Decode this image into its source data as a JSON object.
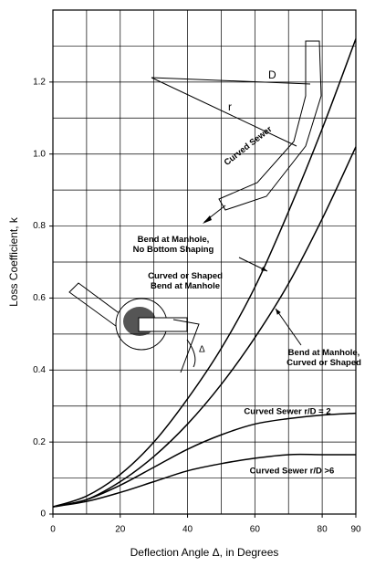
{
  "chart_data": {
    "type": "line",
    "x_label": "Deflection Angle Δ, in Degrees",
    "y_label": "Loss Coefficient, k",
    "xlim": [
      0,
      90
    ],
    "ylim": [
      0,
      1.4
    ],
    "xticks": [
      0,
      20,
      40,
      60,
      80,
      90
    ],
    "x_gridlines": [
      0,
      10,
      20,
      30,
      40,
      50,
      60,
      70,
      80,
      90
    ],
    "yticks": [
      0,
      0.2,
      0.4,
      0.6,
      0.8,
      {
        "value": 1.0,
        "label": "1.0"
      },
      1.2
    ],
    "y_gridlines": [
      0,
      0.1,
      0.2,
      0.3,
      0.4,
      0.5,
      0.6,
      0.7,
      0.8,
      0.9,
      1.0,
      1.1,
      1.2,
      1.3,
      1.4
    ],
    "grid": true,
    "x": [
      0,
      10,
      20,
      30,
      40,
      50,
      60,
      70,
      80,
      90
    ],
    "series": [
      {
        "name": "Bend at Manhole,\nNo Bottom Shaping",
        "color": "#000000",
        "values": [
          0.02,
          0.05,
          0.11,
          0.2,
          0.32,
          0.46,
          0.63,
          0.84,
          1.07,
          1.32
        ]
      },
      {
        "name": "Bend at Manhole,\nCurved or Shaped",
        "color": "#000000",
        "values": [
          0.02,
          0.04,
          0.09,
          0.16,
          0.25,
          0.36,
          0.49,
          0.64,
          0.82,
          1.02
        ]
      },
      {
        "name": "Curved Sewer r/D = 2",
        "color": "#000000",
        "values": [
          0.02,
          0.04,
          0.08,
          0.13,
          0.18,
          0.22,
          0.25,
          0.265,
          0.275,
          0.28
        ]
      },
      {
        "name": "Curved Sewer r/D >6",
        "color": "#000000",
        "values": [
          0.02,
          0.035,
          0.06,
          0.09,
          0.12,
          0.14,
          0.155,
          0.165,
          0.165,
          0.165
        ]
      }
    ],
    "annotations": [
      "Curved or Shaped\nBend at Manhole",
      "Curved Sewer",
      "r",
      "D",
      "Δ"
    ]
  }
}
